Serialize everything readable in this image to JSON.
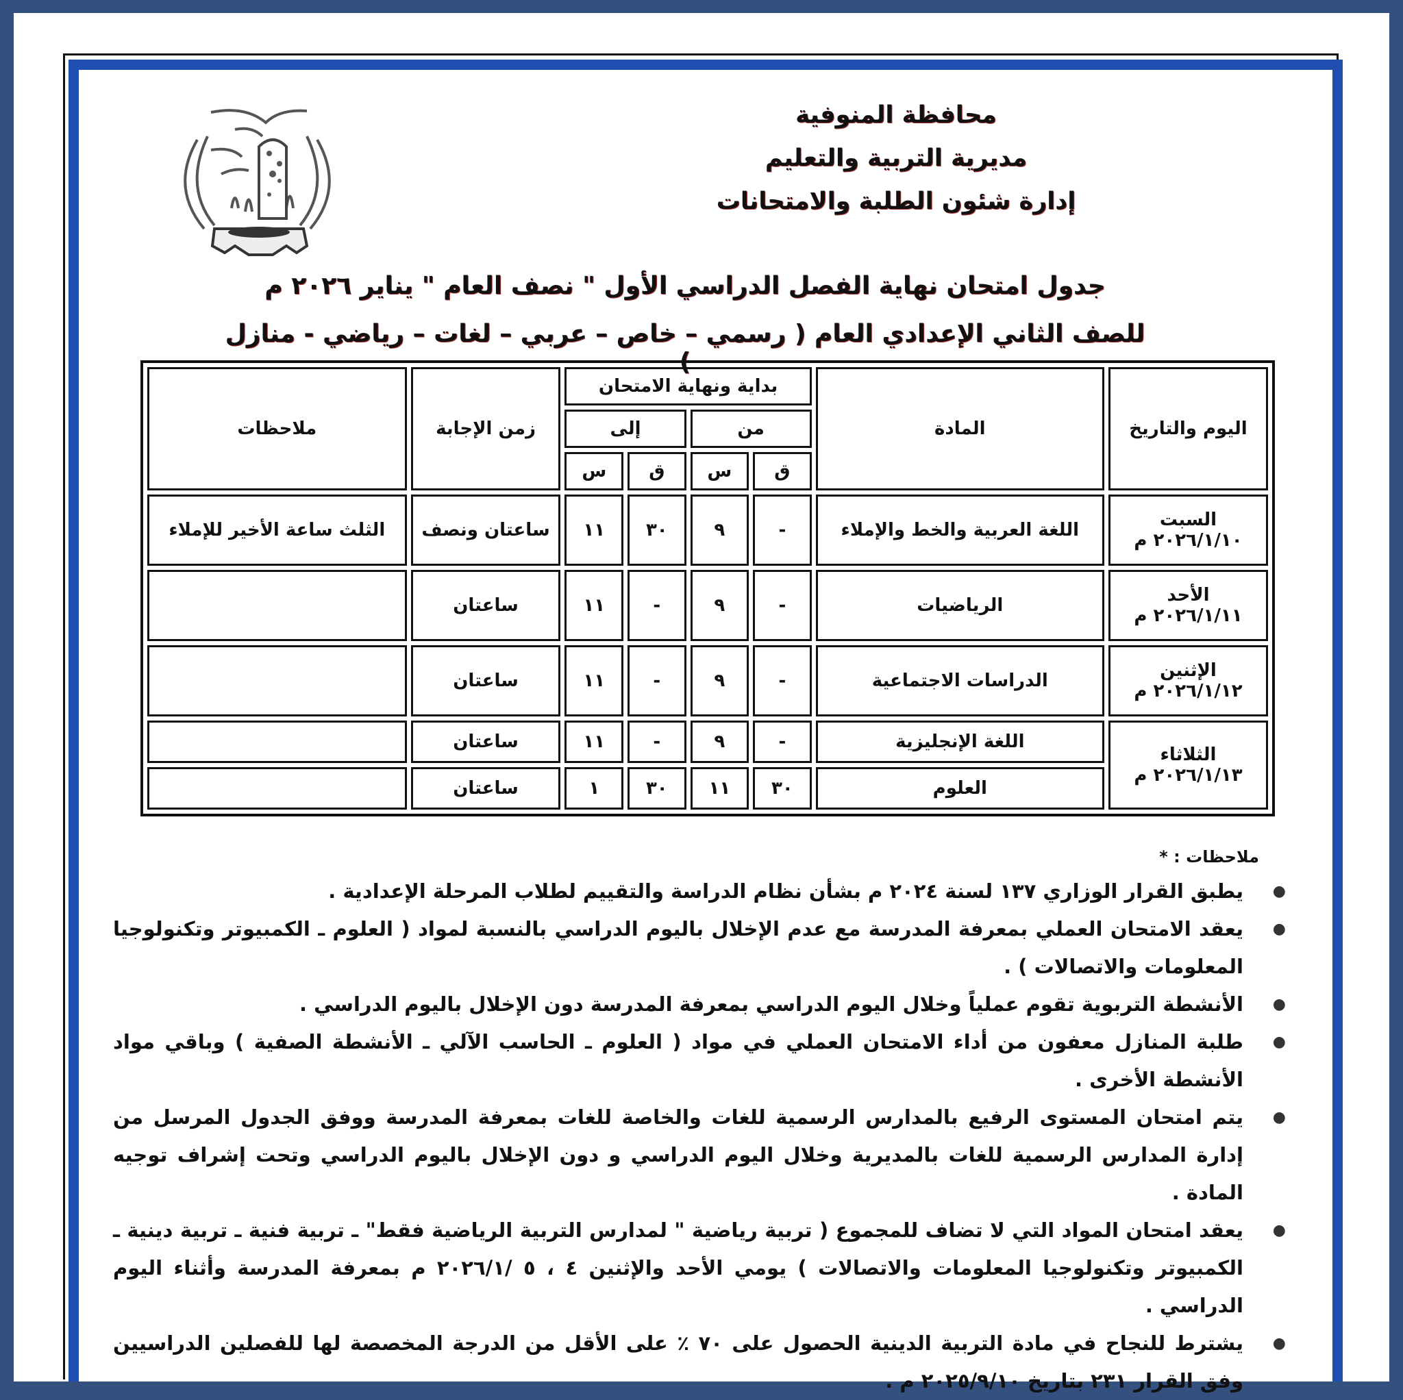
{
  "header": {
    "governorate": "محافظة المنوفية",
    "directorate": "مديرية التربية والتعليم",
    "department": "إدارة شئون الطلبة والامتحانات",
    "logo_icon": "emblem-dove-tower-gear-icon"
  },
  "title": {
    "line1": "جدول امتحان نهاية الفصل الدراسي الأول \" نصف العام \" يناير ٢٠٢٦ م",
    "line2": "للصف الثاني الإعدادي العام ( رسمي – خاص – عربي – لغات – رياضي - منازل )"
  },
  "table": {
    "headers": {
      "day_date": "اليوم والتاريخ",
      "subject": "المادة",
      "start_end": "بداية ونهاية الامتحان",
      "from": "من",
      "to": "إلى",
      "minute": "ق",
      "hour": "س",
      "duration": "زمن الإجابة",
      "notes": "ملاحظات"
    },
    "rows": [
      {
        "day": "السبت",
        "date": "٢٠٢٦/١/١٠ م",
        "subject": "اللغة العربية والخط والإملاء",
        "from_q": "-",
        "from_s": "٩",
        "to_q": "٣٠",
        "to_s": "١١",
        "duration": "ساعتان ونصف",
        "note": "الثلث ساعة الأخير للإملاء"
      },
      {
        "day": "الأحد",
        "date": "٢٠٢٦/١/١١ م",
        "subject": "الرياضيات",
        "from_q": "-",
        "from_s": "٩",
        "to_q": "-",
        "to_s": "١١",
        "duration": "ساعتان",
        "note": ""
      },
      {
        "day": "الإثنين",
        "date": "٢٠٢٦/١/١٢ م",
        "subject": "الدراسات الاجتماعية",
        "from_q": "-",
        "from_s": "٩",
        "to_q": "-",
        "to_s": "١١",
        "duration": "ساعتان",
        "note": ""
      },
      {
        "day": "الثلاثاء",
        "date": "٢٠٢٦/١/١٣ م",
        "subject": "اللغة الإنجليزية",
        "from_q": "-",
        "from_s": "٩",
        "to_q": "-",
        "to_s": "١١",
        "duration": "ساعتان",
        "note": ""
      },
      {
        "subject": "العلوم",
        "from_q": "٣٠",
        "from_s": "١١",
        "to_q": "٣٠",
        "to_s": "١",
        "duration": "ساعتان",
        "note": ""
      }
    ]
  },
  "notes": {
    "title": "ملاحظات : *",
    "items": [
      "يطبق القرار الوزاري ١٣٧ لسنة ٢٠٢٤ م بشأن نظام الدراسة والتقييم لطلاب المرحلة الإعدادية .",
      "يعقد الامتحان العملي بمعرفة المدرسة مع عدم الإخلال باليوم الدراسي بالنسبة لمواد ( العلوم ـ الكمبيوتر وتكنولوجيا المعلومات والاتصالات ) .",
      "الأنشطة التربوية تقوم عملياً وخلال اليوم الدراسي بمعرفة المدرسة دون الإخلال باليوم الدراسي .",
      "طلبة المنازل معفون من أداء الامتحان العملي في مواد ( العلوم ـ الحاسب الآلي ـ الأنشطة الصفية ) وباقي مواد الأنشطة الأخرى .",
      "يتم امتحان المستوى الرفيع بالمدارس الرسمية للغات والخاصة للغات بمعرفة المدرسة ووفق الجدول المرسل من إدارة المدارس الرسمية للغات بالمديرية وخلال اليوم الدراسي و دون الإخلال باليوم الدراسي وتحت إشراف توجيه المادة .",
      "يعقد امتحان المواد التي لا تضاف للمجموع ( تربية رياضية \" لمدارس التربية الرياضية فقط\" ـ تربية فنية ـ تربية دينية ـ الكمبيوتر وتكنولوجيا المعلومات والاتصالات ) يومي الأحد والإثنين ٤ ، ٥ /٢٠٢٦/١ م بمعرفة المدرسة وأثناء اليوم الدراسي .",
      "يشترط للنجاح في مادة التربية الدينية الحصول على ٧٠ ٪ على الأقل من الدرجة المخصصة لها للفصلين الدراسيين وفق القرار ٢٣١ بتاريخ ٢٠٢٥/٩/١٠ م ."
    ]
  },
  "colors": {
    "outer_border": "#34507f",
    "frame_blue": "#1e4fb0",
    "text": "#111111"
  }
}
